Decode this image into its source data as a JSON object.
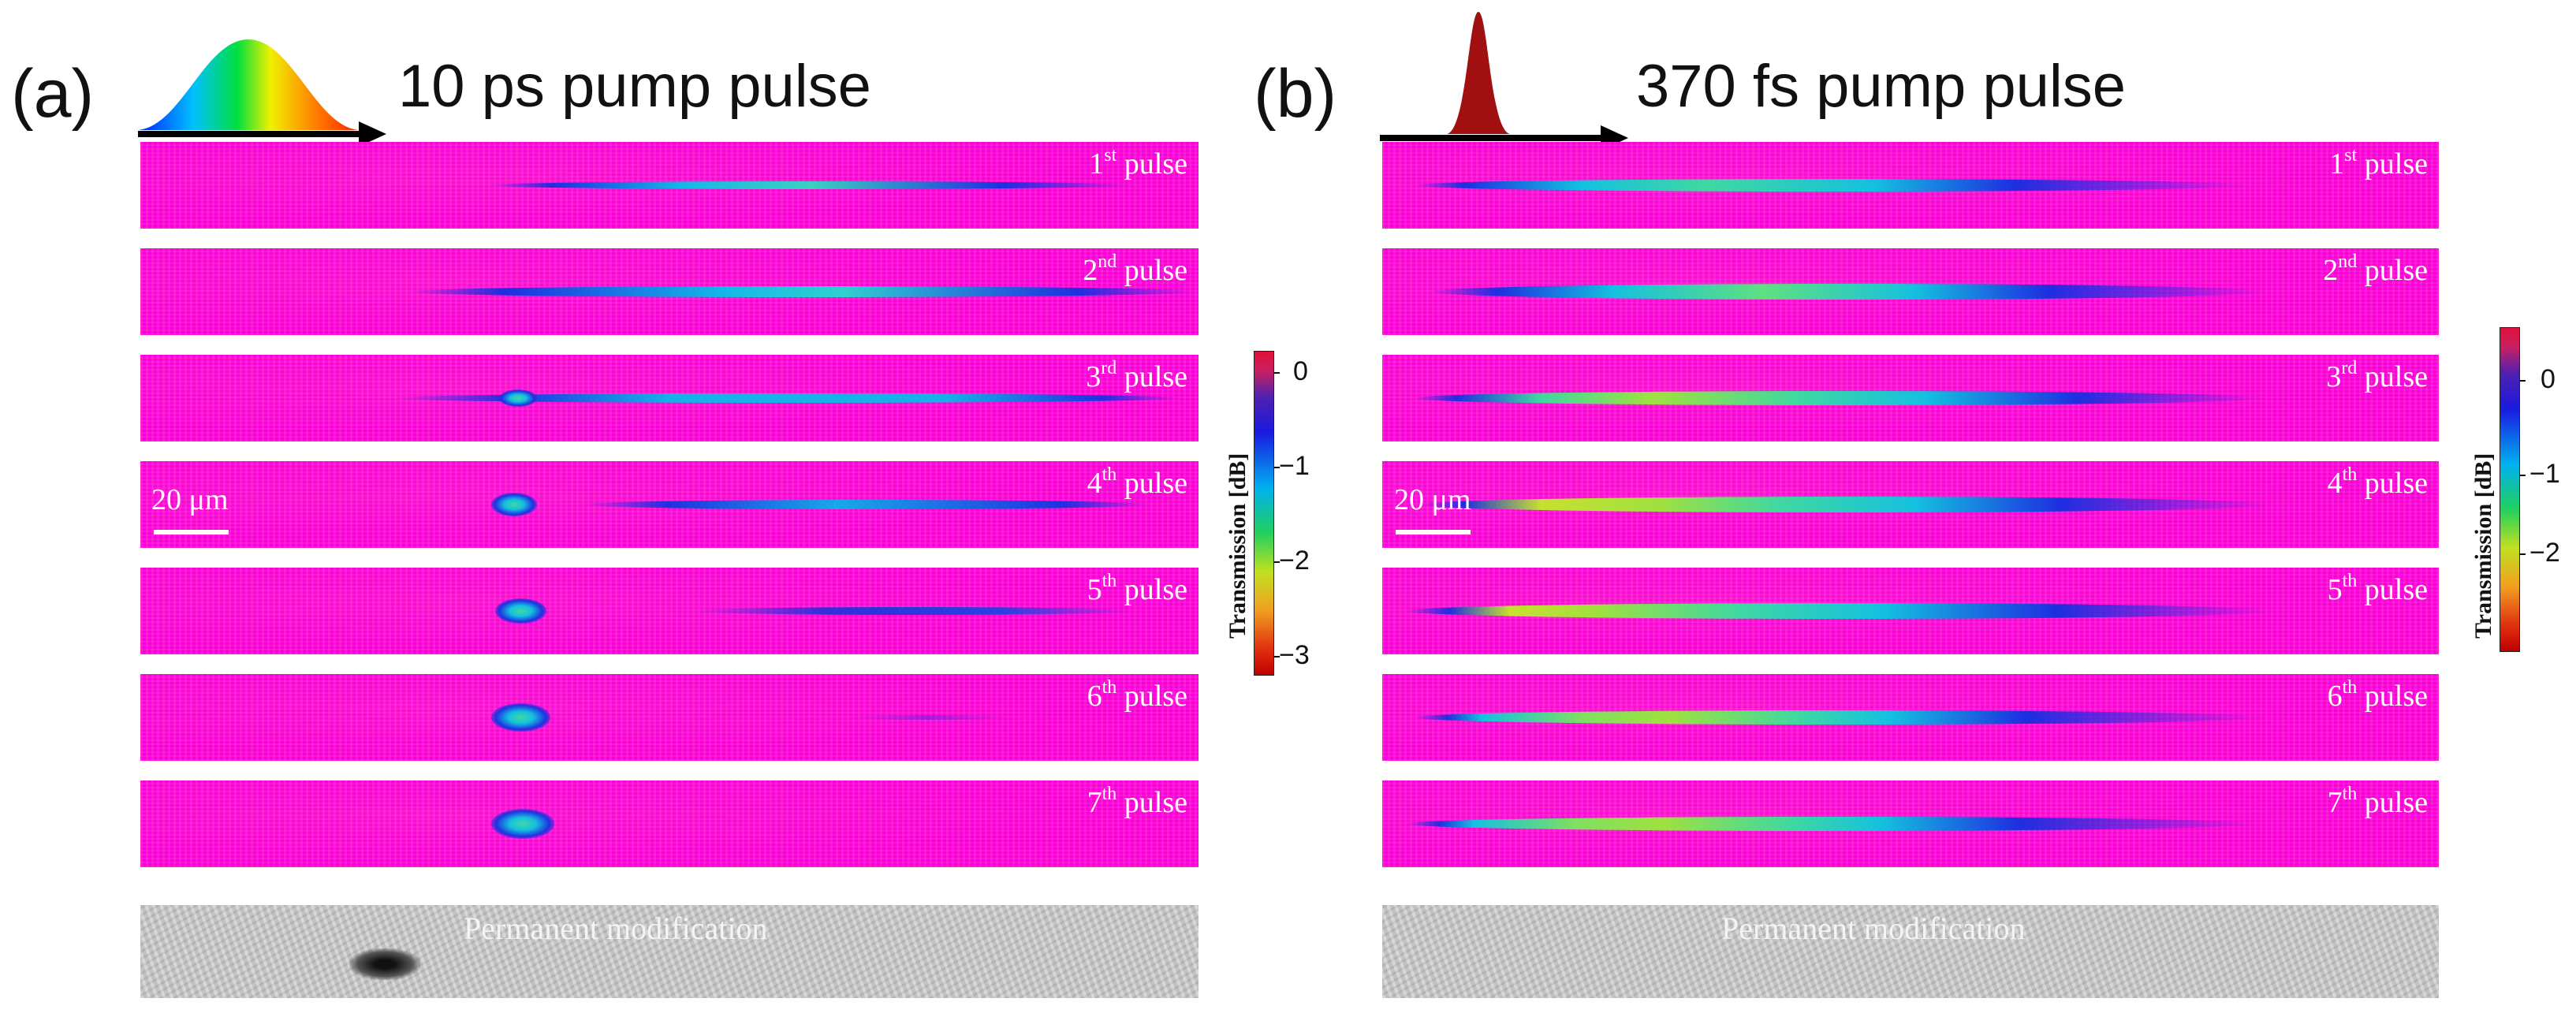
{
  "panel_a": {
    "letter": "(a)",
    "title": "10 ps pump pulse",
    "scale_label": "20 μm",
    "perm_label": "Permanent modification",
    "colorbar": {
      "title": "Transmission [dB]",
      "ticks": [
        "0",
        "−1",
        "−2",
        "−3"
      ]
    }
  },
  "panel_b": {
    "letter": "(b)",
    "title": "370 fs pump pulse",
    "scale_label": "20 μm",
    "perm_label": "Permanent modification",
    "colorbar": {
      "title": "Transmission [dB]",
      "ticks": [
        "0",
        "−1",
        "−2"
      ]
    }
  },
  "pulses": [
    {
      "num": "1",
      "sup": "st",
      "word": "pulse"
    },
    {
      "num": "2",
      "sup": "nd",
      "word": "pulse"
    },
    {
      "num": "3",
      "sup": "rd",
      "word": "pulse"
    },
    {
      "num": "4",
      "sup": "th",
      "word": "pulse"
    },
    {
      "num": "5",
      "sup": "th",
      "word": "pulse"
    },
    {
      "num": "6",
      "sup": "th",
      "word": "pulse"
    },
    {
      "num": "7",
      "sup": "th",
      "word": "pulse"
    }
  ],
  "colors": {
    "background": "#ff10d4",
    "pulse_b": "#a01010"
  }
}
